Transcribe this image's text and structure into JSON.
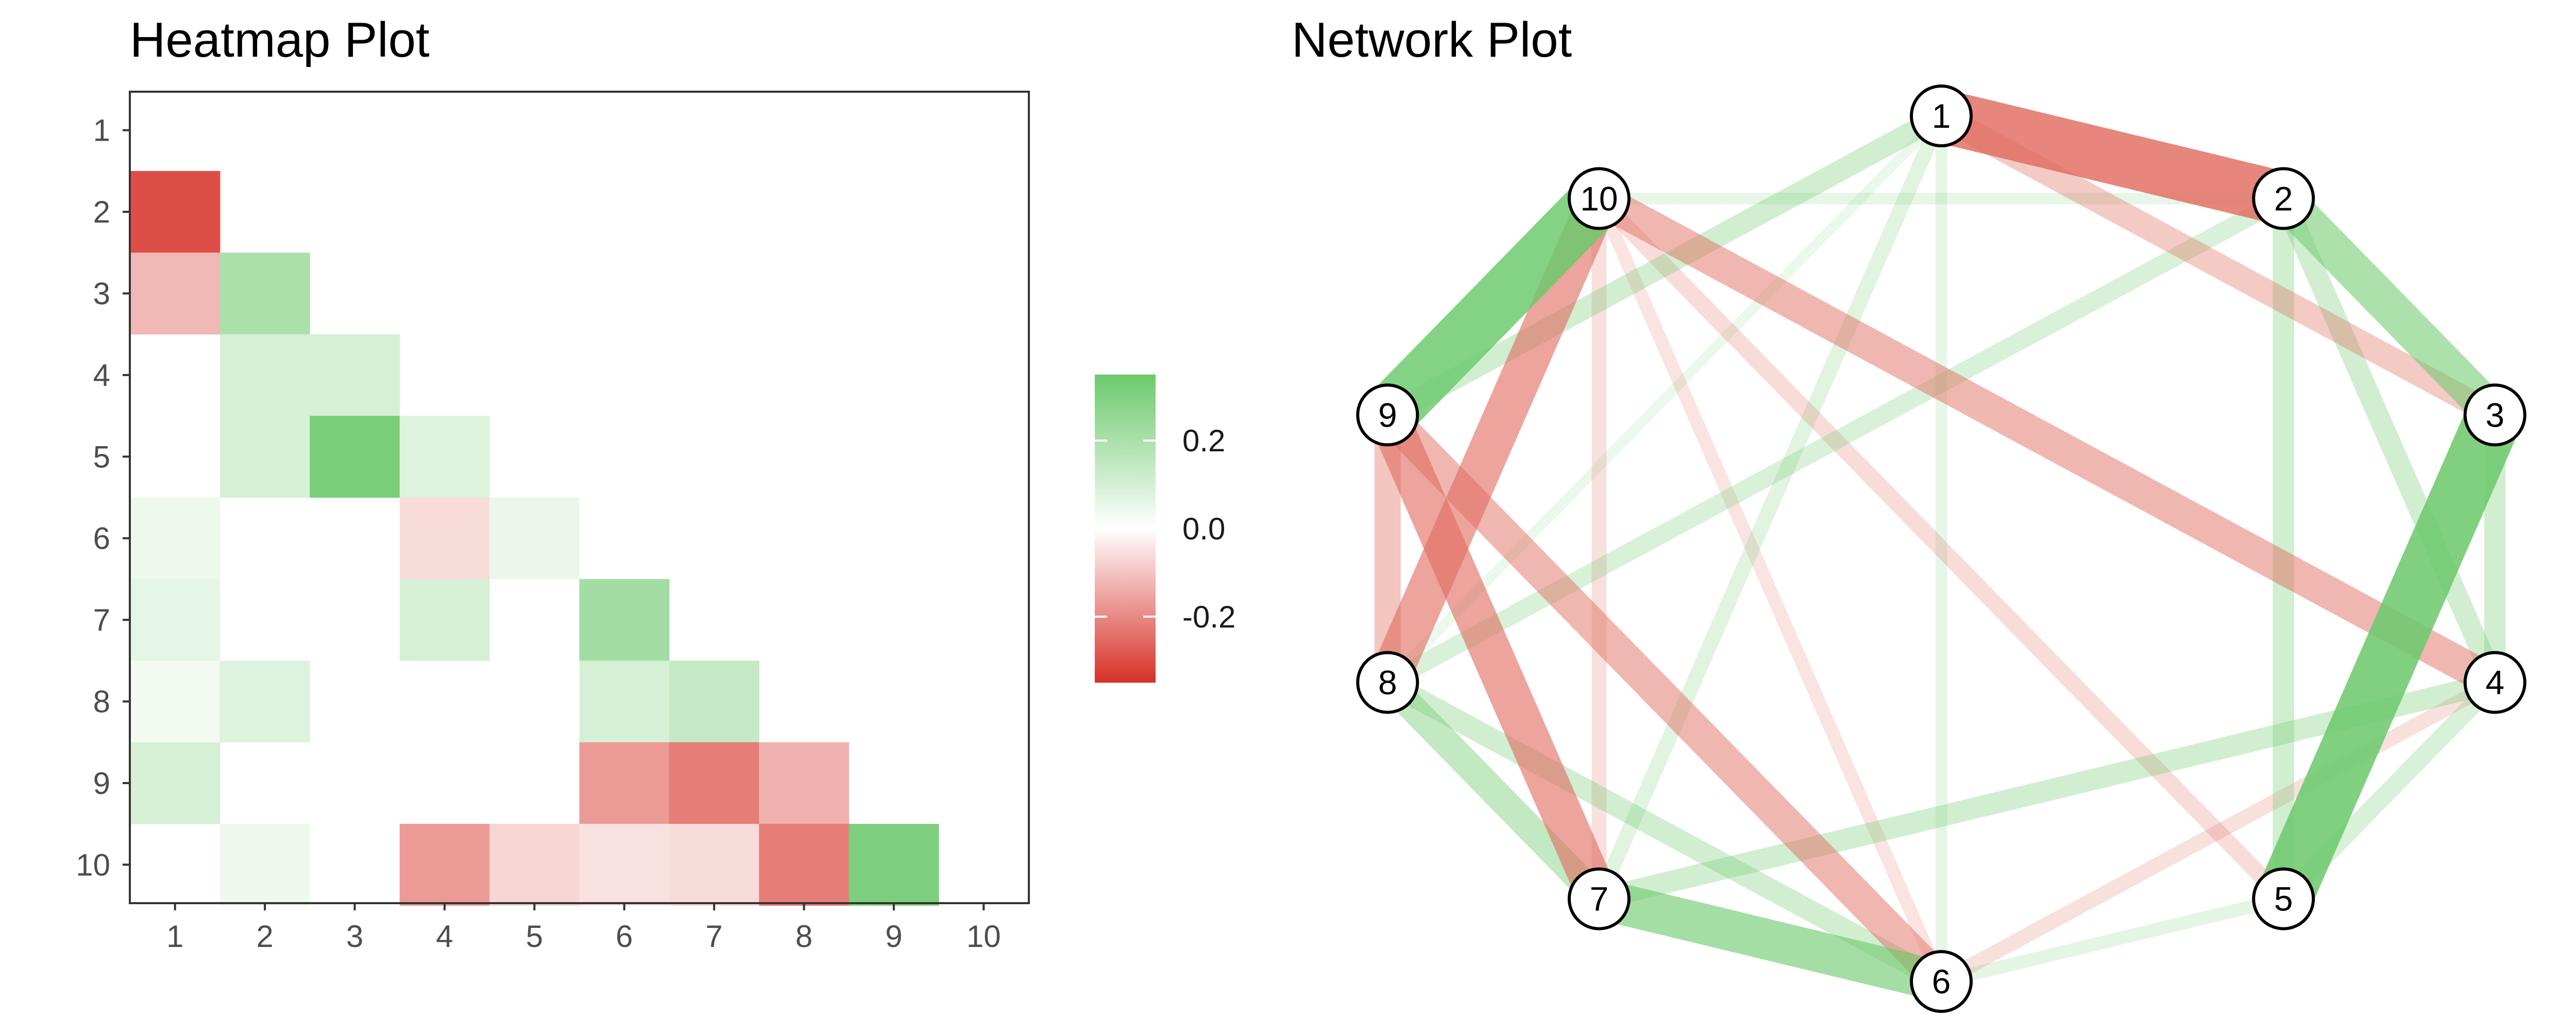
{
  "chart_data": [
    {
      "type": "heatmap",
      "title": "Heatmap Plot",
      "x_categories": [
        "1",
        "2",
        "3",
        "4",
        "5",
        "6",
        "7",
        "8",
        "9",
        "10"
      ],
      "y_categories": [
        "1",
        "2",
        "3",
        "4",
        "5",
        "6",
        "7",
        "8",
        "9",
        "10"
      ],
      "value_range": [
        -0.35,
        0.35
      ],
      "color_scale": {
        "low": "#d73027",
        "mid": "#ffffff",
        "high": "#6cc96c"
      },
      "legend": {
        "ticks": [
          "0.2",
          "0.0",
          "-0.2"
        ],
        "tick_values": [
          0.2,
          0.0,
          -0.2
        ],
        "position": "right"
      },
      "grid": false,
      "cells": [
        {
          "row": "2",
          "col": "1",
          "value": -0.3
        },
        {
          "row": "3",
          "col": "1",
          "value": -0.12
        },
        {
          "row": "3",
          "col": "2",
          "value": 0.2
        },
        {
          "row": "4",
          "col": "2",
          "value": 0.1
        },
        {
          "row": "4",
          "col": "3",
          "value": 0.1
        },
        {
          "row": "5",
          "col": "2",
          "value": 0.1
        },
        {
          "row": "5",
          "col": "3",
          "value": 0.32
        },
        {
          "row": "5",
          "col": "4",
          "value": 0.08
        },
        {
          "row": "6",
          "col": "1",
          "value": 0.04
        },
        {
          "row": "6",
          "col": "4",
          "value": -0.06
        },
        {
          "row": "6",
          "col": "5",
          "value": 0.05
        },
        {
          "row": "7",
          "col": "1",
          "value": 0.06
        },
        {
          "row": "7",
          "col": "4",
          "value": 0.1
        },
        {
          "row": "7",
          "col": "6",
          "value": 0.22
        },
        {
          "row": "8",
          "col": "1",
          "value": 0.03
        },
        {
          "row": "8",
          "col": "2",
          "value": 0.08
        },
        {
          "row": "8",
          "col": "6",
          "value": 0.1
        },
        {
          "row": "8",
          "col": "7",
          "value": 0.14
        },
        {
          "row": "9",
          "col": "1",
          "value": 0.1
        },
        {
          "row": "9",
          "col": "6",
          "value": -0.17
        },
        {
          "row": "9",
          "col": "7",
          "value": -0.22
        },
        {
          "row": "9",
          "col": "8",
          "value": -0.13
        },
        {
          "row": "10",
          "col": "2",
          "value": 0.04
        },
        {
          "row": "10",
          "col": "4",
          "value": -0.17
        },
        {
          "row": "10",
          "col": "5",
          "value": -0.07
        },
        {
          "row": "10",
          "col": "6",
          "value": -0.05
        },
        {
          "row": "10",
          "col": "7",
          "value": -0.06
        },
        {
          "row": "10",
          "col": "8",
          "value": -0.22
        },
        {
          "row": "10",
          "col": "9",
          "value": 0.31
        }
      ]
    },
    {
      "type": "network",
      "title": "Network Plot",
      "layout": "circle",
      "nodes": [
        "1",
        "2",
        "3",
        "4",
        "5",
        "6",
        "7",
        "8",
        "9",
        "10"
      ],
      "edge_color_scale": {
        "negative": "#e06b5e",
        "positive": "#6cc96c"
      },
      "edges": [
        {
          "source": "1",
          "target": "2",
          "value": -0.3
        },
        {
          "source": "1",
          "target": "3",
          "value": -0.12
        },
        {
          "source": "2",
          "target": "3",
          "value": 0.2
        },
        {
          "source": "2",
          "target": "4",
          "value": 0.1
        },
        {
          "source": "3",
          "target": "4",
          "value": 0.1
        },
        {
          "source": "2",
          "target": "5",
          "value": 0.1
        },
        {
          "source": "3",
          "target": "5",
          "value": 0.32
        },
        {
          "source": "4",
          "target": "5",
          "value": 0.08
        },
        {
          "source": "1",
          "target": "6",
          "value": 0.04
        },
        {
          "source": "4",
          "target": "6",
          "value": -0.06
        },
        {
          "source": "5",
          "target": "6",
          "value": 0.05
        },
        {
          "source": "1",
          "target": "7",
          "value": 0.06
        },
        {
          "source": "4",
          "target": "7",
          "value": 0.1
        },
        {
          "source": "6",
          "target": "7",
          "value": 0.22
        },
        {
          "source": "1",
          "target": "8",
          "value": 0.03
        },
        {
          "source": "2",
          "target": "8",
          "value": 0.08
        },
        {
          "source": "6",
          "target": "8",
          "value": 0.1
        },
        {
          "source": "7",
          "target": "8",
          "value": 0.14
        },
        {
          "source": "1",
          "target": "9",
          "value": 0.1
        },
        {
          "source": "6",
          "target": "9",
          "value": -0.17
        },
        {
          "source": "7",
          "target": "9",
          "value": -0.22
        },
        {
          "source": "8",
          "target": "9",
          "value": -0.13
        },
        {
          "source": "2",
          "target": "10",
          "value": 0.04
        },
        {
          "source": "4",
          "target": "10",
          "value": -0.17
        },
        {
          "source": "5",
          "target": "10",
          "value": -0.07
        },
        {
          "source": "6",
          "target": "10",
          "value": -0.05
        },
        {
          "source": "7",
          "target": "10",
          "value": -0.06
        },
        {
          "source": "8",
          "target": "10",
          "value": -0.22
        },
        {
          "source": "9",
          "target": "10",
          "value": 0.31
        }
      ]
    }
  ]
}
